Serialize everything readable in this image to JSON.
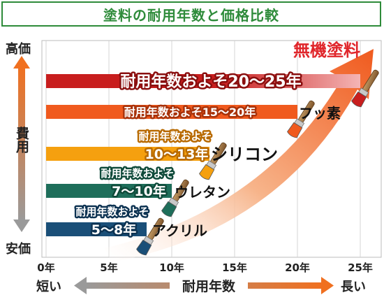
{
  "title": "塗料の耐用年数と価格比較",
  "colors": {
    "title_green": "#2e8b3a",
    "axis_orange": "#f07020",
    "axis_gray": "#9a9a9a",
    "highlight_red": "#e0262b"
  },
  "y_axis": {
    "top_label": "高価",
    "label": "費用",
    "bottom_label": "安価"
  },
  "x_axis": {
    "left_label": "短い",
    "label": "耐用年数",
    "right_label": "長い"
  },
  "chart_data": {
    "type": "bar",
    "orientation": "horizontal",
    "xlim": [
      0,
      26
    ],
    "x_ticks": [
      "0年",
      "5年",
      "10年",
      "15年",
      "20年",
      "25年"
    ],
    "x_tick_values": [
      0,
      5,
      10,
      15,
      20,
      25
    ],
    "grid": true,
    "highlight_label": "無機塗料",
    "series": [
      {
        "category": "",
        "range": [
          20,
          25
        ],
        "label": "耐用年数およそ20～25年",
        "color": "#c81e1e"
      },
      {
        "category": "フッ素",
        "range": [
          15,
          20
        ],
        "label": "耐用年数およそ15～20年",
        "color": "#f05a1e"
      },
      {
        "category": "シリコン",
        "range": [
          10,
          13
        ],
        "label_line1": "耐用年数およそ",
        "label_line2": "10～13年",
        "color": "#f5a00f"
      },
      {
        "category": "ウレタン",
        "range": [
          7,
          10
        ],
        "label_line1": "耐用年数およそ",
        "label_line2": "7～10年",
        "color": "#1e6e5a"
      },
      {
        "category": "アクリル",
        "range": [
          5,
          8
        ],
        "label_line1": "耐用年数およそ",
        "label_line2": "5～8年",
        "color": "#1a4f78"
      }
    ]
  }
}
